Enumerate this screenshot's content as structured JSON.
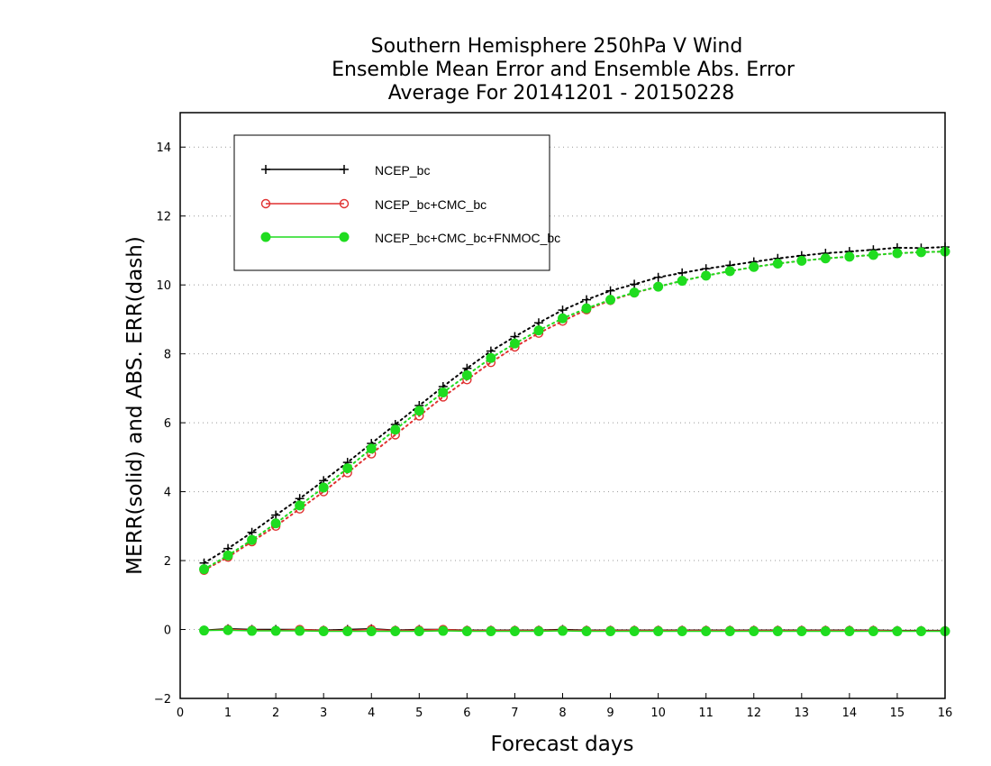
{
  "chart_data": {
    "type": "line",
    "title_lines": [
      "Southern Hemisphere 250hPa V Wind",
      "Ensemble Mean Error and Ensemble Abs. Error",
      "Average For 20141201 - 20150228"
    ],
    "xlabel": "Forecast days",
    "ylabel": "MERR(solid) and ABS. ERR(dash)",
    "xlim": [
      0,
      16
    ],
    "ylim": [
      -2,
      15
    ],
    "xticks": [
      0,
      1,
      2,
      3,
      4,
      5,
      6,
      7,
      8,
      9,
      10,
      11,
      12,
      13,
      14,
      15,
      16
    ],
    "yticks": [
      -2,
      0,
      2,
      4,
      6,
      8,
      10,
      12,
      14
    ],
    "grid": "horizontal dotted",
    "legend_position": "top-left",
    "x": [
      0.5,
      1,
      1.5,
      2,
      2.5,
      3,
      3.5,
      4,
      4.5,
      5,
      5.5,
      6,
      6.5,
      7,
      7.5,
      8,
      8.5,
      9,
      9.5,
      10,
      10.5,
      11,
      11.5,
      12,
      12.5,
      13,
      13.5,
      14,
      14.5,
      15,
      15.5,
      16
    ],
    "series": [
      {
        "name": "NCEP_bc",
        "color": "#000000",
        "marker": "plus",
        "abs_error": [
          1.93,
          2.35,
          2.82,
          3.32,
          3.8,
          4.32,
          4.85,
          5.4,
          5.95,
          6.5,
          7.05,
          7.58,
          8.08,
          8.5,
          8.9,
          9.27,
          9.57,
          9.83,
          10.02,
          10.22,
          10.35,
          10.47,
          10.57,
          10.67,
          10.77,
          10.85,
          10.92,
          10.97,
          11.02,
          11.08,
          11.07,
          11.1
        ],
        "mean_error": [
          -0.02,
          0.02,
          0.0,
          0.0,
          0.0,
          -0.02,
          0.0,
          0.02,
          -0.02,
          0.0,
          0.0,
          -0.02,
          -0.02,
          -0.02,
          -0.02,
          0.0,
          -0.02,
          -0.02,
          -0.02,
          -0.02,
          -0.02,
          -0.02,
          -0.02,
          -0.02,
          -0.02,
          -0.02,
          -0.02,
          -0.02,
          -0.02,
          -0.03,
          -0.03,
          -0.03
        ]
      },
      {
        "name": "NCEP_bc+CMC_bc",
        "color": "#e03030",
        "marker": "open-circle",
        "abs_error": [
          1.72,
          2.1,
          2.55,
          3.0,
          3.5,
          4.0,
          4.55,
          5.1,
          5.65,
          6.2,
          6.75,
          7.25,
          7.75,
          8.2,
          8.6,
          8.95,
          9.28,
          9.55,
          9.77,
          9.95,
          10.12,
          10.27,
          10.4,
          10.52,
          10.62,
          10.7,
          10.77,
          10.82,
          10.87,
          10.92,
          10.95,
          10.97
        ],
        "mean_error": [
          -0.03,
          0.0,
          -0.02,
          -0.03,
          0.0,
          -0.03,
          -0.03,
          0.0,
          -0.03,
          -0.02,
          0.0,
          -0.03,
          -0.03,
          -0.03,
          -0.03,
          -0.02,
          -0.03,
          -0.03,
          -0.03,
          -0.03,
          -0.03,
          -0.03,
          -0.03,
          -0.03,
          -0.03,
          -0.03,
          -0.03,
          -0.03,
          -0.03,
          -0.04,
          -0.04,
          -0.04
        ]
      },
      {
        "name": "NCEP_bc+CMC_bc+FNMOC_bc",
        "color": "#1fdc1f",
        "marker": "filled-circle",
        "abs_error": [
          1.75,
          2.15,
          2.6,
          3.08,
          3.6,
          4.12,
          4.68,
          5.25,
          5.8,
          6.35,
          6.88,
          7.38,
          7.88,
          8.3,
          8.68,
          9.03,
          9.32,
          9.57,
          9.78,
          9.95,
          10.12,
          10.27,
          10.4,
          10.52,
          10.62,
          10.7,
          10.77,
          10.82,
          10.87,
          10.92,
          10.95,
          10.97
        ],
        "mean_error": [
          -0.03,
          -0.02,
          -0.04,
          -0.04,
          -0.04,
          -0.05,
          -0.05,
          -0.05,
          -0.05,
          -0.05,
          -0.04,
          -0.05,
          -0.05,
          -0.05,
          -0.05,
          -0.04,
          -0.05,
          -0.05,
          -0.05,
          -0.05,
          -0.05,
          -0.05,
          -0.05,
          -0.05,
          -0.05,
          -0.05,
          -0.05,
          -0.05,
          -0.05,
          -0.05,
          -0.05,
          -0.05
        ]
      }
    ]
  }
}
